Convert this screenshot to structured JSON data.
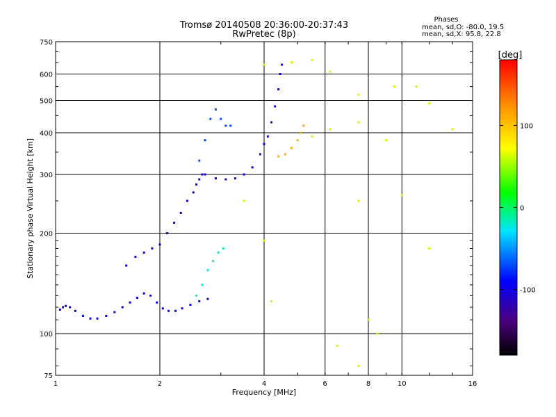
{
  "chart_data": {
    "type": "scatter",
    "title": "Tromsø 20140508 20:36:00-20:37:43",
    "subtitle": "RwPretec (8p)",
    "xlabel": "Frequency [MHz]",
    "ylabel": "Stationary phase Virtual Height [km]",
    "x_scale": "log",
    "y_scale": "log",
    "xlim": [
      1,
      16
    ],
    "ylim": [
      75,
      750
    ],
    "x_ticks": [
      1,
      2,
      4,
      6,
      8,
      10,
      16
    ],
    "x_tick_labels": [
      "1",
      "2",
      "4",
      "6",
      "8",
      "10",
      "16"
    ],
    "y_ticks": [
      75,
      100,
      200,
      300,
      400,
      500,
      600,
      750
    ],
    "y_tick_labels": [
      "75",
      "100",
      "200",
      "300",
      "400",
      "500",
      "600",
      "750"
    ],
    "grid": true,
    "stats": {
      "header": "Phases",
      "line_o": "mean, sd,O: -80.0, 19.5",
      "line_x": "mean, sd,X:  95.8, 22.8"
    },
    "colorbar": {
      "label": "[deg]",
      "range": [
        -180,
        180
      ],
      "ticks": [
        100,
        0,
        -100
      ],
      "tick_labels": [
        "100",
        "0",
        "-100"
      ]
    },
    "series": [
      {
        "trace": "O-low",
        "phase": -95,
        "points": [
          [
            1.03,
            118
          ],
          [
            1.05,
            120
          ],
          [
            1.07,
            121
          ],
          [
            1.1,
            120
          ],
          [
            1.14,
            117
          ],
          [
            1.2,
            113
          ],
          [
            1.26,
            111
          ],
          [
            1.32,
            111
          ],
          [
            1.4,
            113
          ],
          [
            1.48,
            116
          ],
          [
            1.56,
            120
          ],
          [
            1.64,
            124
          ],
          [
            1.72,
            128
          ],
          [
            1.8,
            132
          ],
          [
            1.88,
            130
          ],
          [
            1.96,
            124
          ],
          [
            2.04,
            119
          ],
          [
            2.12,
            117
          ],
          [
            2.22,
            117
          ],
          [
            2.32,
            119
          ],
          [
            2.45,
            122
          ],
          [
            2.6,
            125
          ],
          [
            2.75,
            127
          ]
        ]
      },
      {
        "trace": "O-low-band",
        "phase": -105,
        "points": [
          [
            1.6,
            160
          ],
          [
            1.7,
            170
          ],
          [
            1.8,
            175
          ],
          [
            1.9,
            180
          ],
          [
            2.0,
            185
          ],
          [
            2.1,
            200
          ],
          [
            2.2,
            215
          ],
          [
            2.3,
            230
          ],
          [
            2.4,
            250
          ],
          [
            2.5,
            265
          ],
          [
            2.55,
            280
          ],
          [
            2.6,
            290
          ],
          [
            2.65,
            300
          ]
        ]
      },
      {
        "trace": "X-low",
        "phase": -20,
        "points": [
          [
            2.55,
            130
          ],
          [
            2.65,
            140
          ],
          [
            2.75,
            155
          ],
          [
            2.85,
            165
          ],
          [
            2.95,
            175
          ],
          [
            3.05,
            180
          ]
        ]
      },
      {
        "trace": "O-F",
        "phase": -100,
        "points": [
          [
            2.7,
            300
          ],
          [
            2.9,
            292
          ],
          [
            3.1,
            290
          ],
          [
            3.3,
            292
          ],
          [
            3.5,
            300
          ],
          [
            3.7,
            315
          ],
          [
            3.9,
            345
          ],
          [
            4.0,
            370
          ],
          [
            4.1,
            390
          ],
          [
            4.2,
            430
          ],
          [
            4.3,
            480
          ],
          [
            4.4,
            540
          ],
          [
            4.45,
            600
          ],
          [
            4.5,
            640
          ]
        ]
      },
      {
        "trace": "O-F-upper",
        "phase": -70,
        "points": [
          [
            2.6,
            330
          ],
          [
            2.7,
            380
          ],
          [
            2.8,
            440
          ],
          [
            2.9,
            470
          ],
          [
            3.0,
            440
          ],
          [
            3.1,
            420
          ],
          [
            3.2,
            420
          ]
        ]
      },
      {
        "trace": "X-F",
        "phase": 110,
        "points": [
          [
            4.4,
            340
          ],
          [
            4.6,
            345
          ],
          [
            4.8,
            360
          ],
          [
            5.0,
            380
          ],
          [
            5.1,
            400
          ],
          [
            5.2,
            420
          ]
        ]
      },
      {
        "trace": "scattered",
        "phase": 60,
        "points": [
          [
            4.0,
            640
          ],
          [
            4.8,
            650
          ],
          [
            5.5,
            660
          ],
          [
            6.2,
            610
          ],
          [
            7.5,
            520
          ],
          [
            9.5,
            550
          ],
          [
            11.0,
            550
          ],
          [
            12.0,
            490
          ],
          [
            7.5,
            430
          ],
          [
            6.2,
            410
          ],
          [
            9.0,
            380
          ],
          [
            14.0,
            410
          ],
          [
            7.5,
            250
          ],
          [
            10.0,
            260
          ],
          [
            12.0,
            180
          ],
          [
            8.0,
            110
          ],
          [
            8.5,
            100
          ],
          [
            6.5,
            92
          ],
          [
            7.5,
            80
          ],
          [
            4.2,
            125
          ],
          [
            4.0,
            190
          ],
          [
            3.5,
            250
          ],
          [
            5.5,
            390
          ]
        ]
      }
    ]
  }
}
